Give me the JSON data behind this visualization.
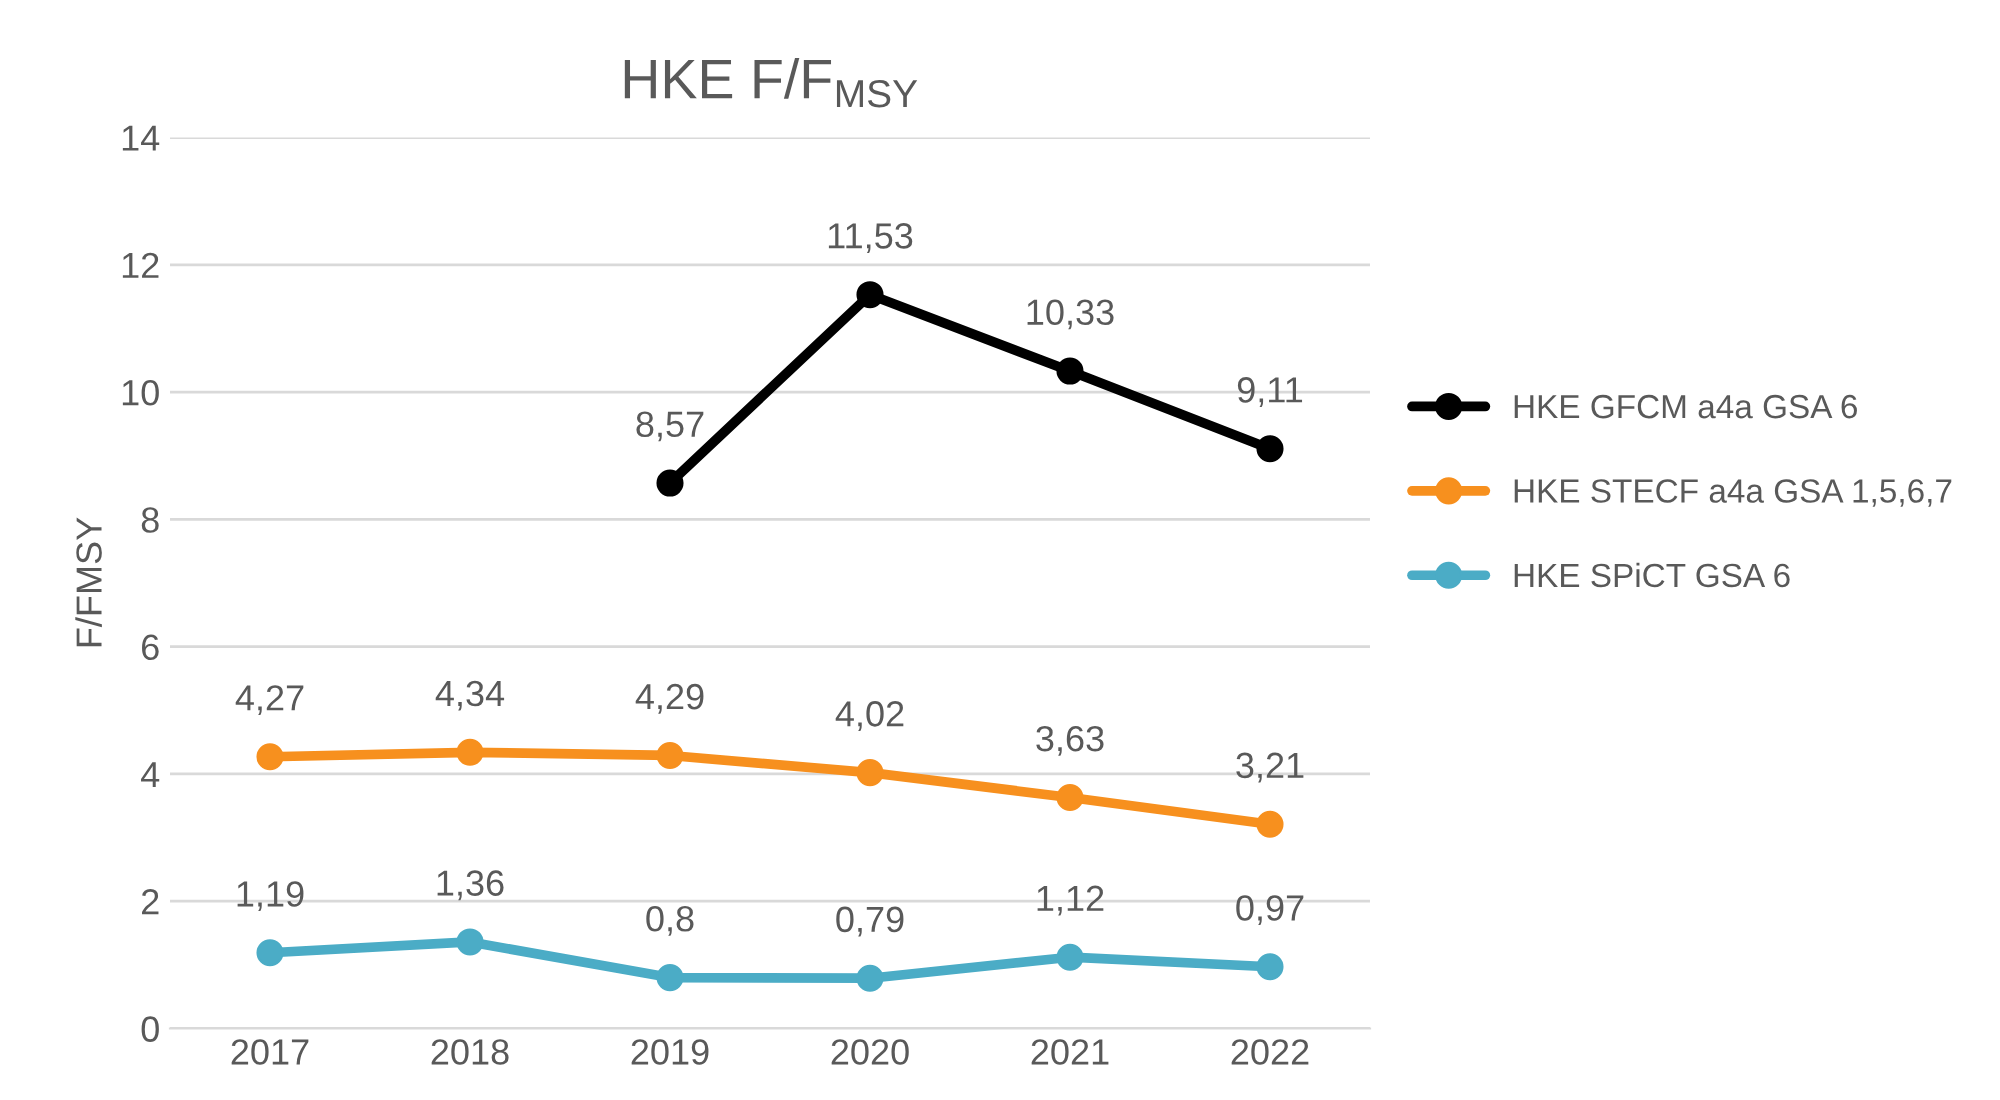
{
  "chart_data": {
    "type": "line",
    "title": "HKE F/F$_{MSY}$",
    "ylabel": "F/FMSY",
    "categories": [
      "2017",
      "2018",
      "2019",
      "2020",
      "2021",
      "2022"
    ],
    "series": [
      {
        "name": "HKE GFCM a4a GSA 6",
        "color": "#000000",
        "values": [
          null,
          null,
          8.57,
          11.53,
          10.33,
          9.11
        ],
        "value_labels": [
          null,
          null,
          "8,57",
          "11,53",
          "10,33",
          "9,11"
        ]
      },
      {
        "name": "HKE STECF a4a GSA 1,5,6,7",
        "color": "#f7901e",
        "values": [
          4.27,
          4.34,
          4.29,
          4.02,
          3.63,
          3.21
        ],
        "value_labels": [
          "4,27",
          "4,34",
          "4,29",
          "4,02",
          "3,63",
          "3,21"
        ]
      },
      {
        "name": "HKE SPiCT GSA 6",
        "color": "#4bacc6",
        "values": [
          1.19,
          1.36,
          0.8,
          0.79,
          1.12,
          0.97
        ],
        "value_labels": [
          "1,19",
          "1,36",
          "0,8",
          "0,79",
          "1,12",
          "0,97"
        ]
      }
    ],
    "ylim": [
      0,
      14
    ],
    "yticks": [
      0,
      2,
      4,
      6,
      8,
      10,
      12,
      14
    ],
    "grid": "y",
    "legend": "right",
    "marker": "circle",
    "line_style": "solid"
  }
}
